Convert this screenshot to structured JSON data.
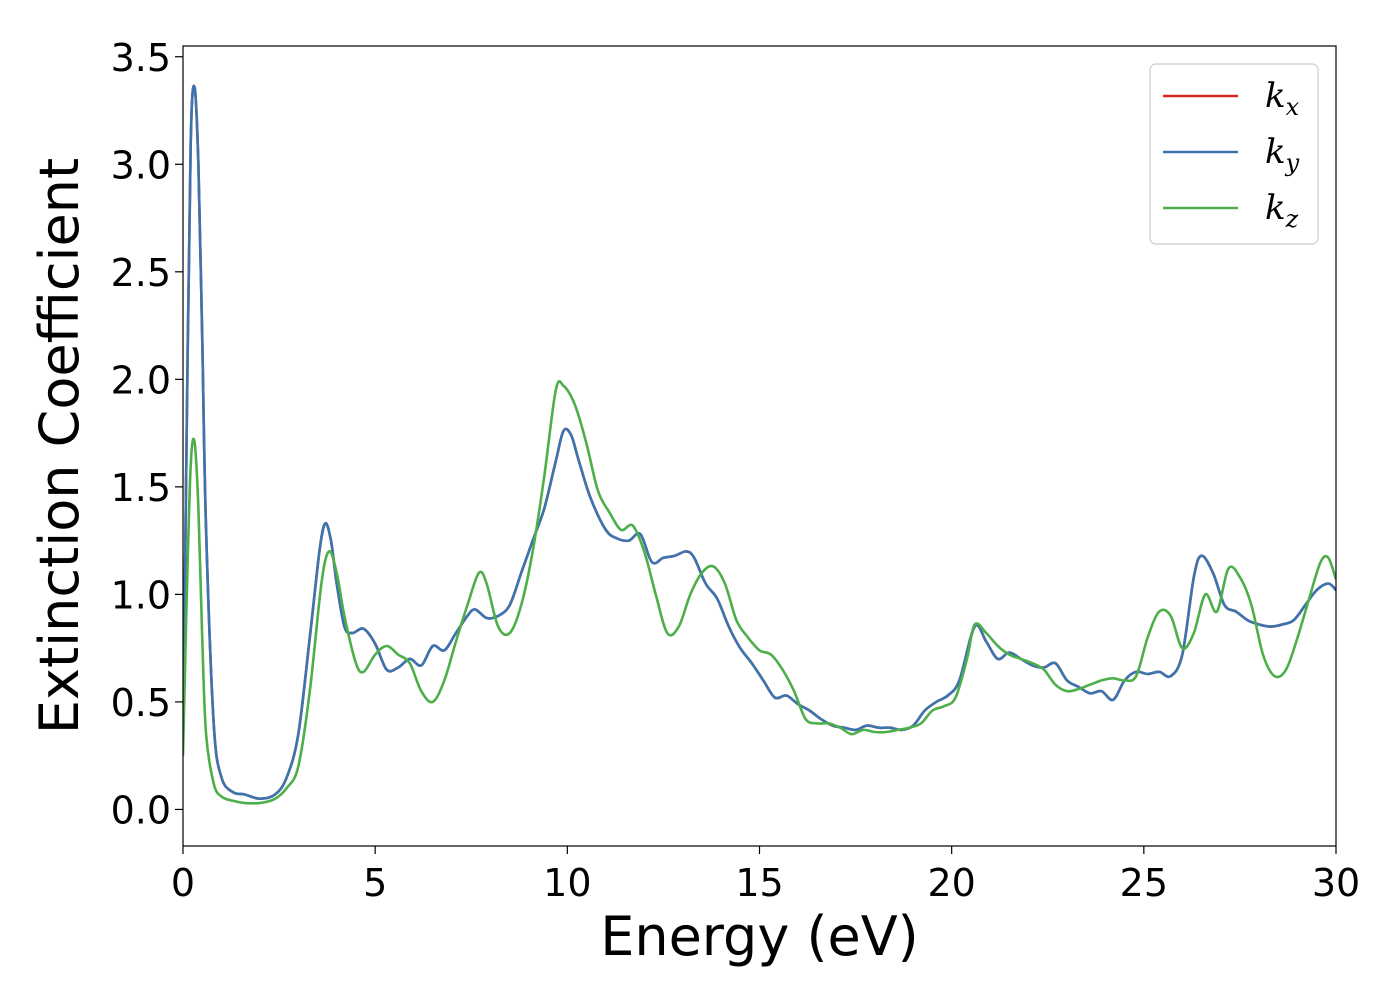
{
  "chart_data": {
    "type": "line",
    "xlabel": "Energy (eV)",
    "ylabel": "Extinction Coefficient",
    "xlim": [
      0,
      30
    ],
    "ylim": [
      -0.17,
      3.55
    ],
    "xticks": [
      0,
      5,
      10,
      15,
      20,
      25,
      30
    ],
    "yticks": [
      0.0,
      0.5,
      1.0,
      1.5,
      2.0,
      2.5,
      3.0,
      3.5
    ],
    "xtick_labels": [
      "0",
      "5",
      "10",
      "15",
      "20",
      "25",
      "30"
    ],
    "ytick_labels": [
      "0.0",
      "0.5",
      "1.0",
      "1.5",
      "2.0",
      "2.5",
      "3.0",
      "3.5"
    ],
    "grid": false,
    "legend_position": "top-right",
    "series": [
      {
        "name": "k",
        "subscript": "x",
        "color": "#d62728",
        "x": [
          0.0,
          0.1,
          0.2,
          0.3,
          0.4,
          0.5,
          0.6,
          0.8,
          1.0,
          1.3,
          1.6,
          2.0,
          2.4,
          2.7,
          3.0,
          3.3,
          3.55,
          3.7,
          3.85,
          4.0,
          4.2,
          4.4,
          4.7,
          5.0,
          5.3,
          5.6,
          5.9,
          6.2,
          6.5,
          6.8,
          7.1,
          7.4,
          7.6,
          7.9,
          8.2,
          8.5,
          8.8,
          9.1,
          9.4,
          9.7,
          9.9,
          10.1,
          10.3,
          10.6,
          11.0,
          11.3,
          11.6,
          11.9,
          12.2,
          12.5,
          12.8,
          13.1,
          13.3,
          13.6,
          13.9,
          14.2,
          14.5,
          14.8,
          15.1,
          15.4,
          15.7,
          16.0,
          16.3,
          16.6,
          16.9,
          17.2,
          17.5,
          17.8,
          18.1,
          18.4,
          18.7,
          19.0,
          19.3,
          19.6,
          19.9,
          20.2,
          20.6,
          20.9,
          21.2,
          21.5,
          21.8,
          22.1,
          22.4,
          22.7,
          23.0,
          23.3,
          23.6,
          23.9,
          24.2,
          24.5,
          24.8,
          25.1,
          25.4,
          25.7,
          26.0,
          26.3,
          26.5,
          26.8,
          27.1,
          27.4,
          27.7,
          28.0,
          28.3,
          28.6,
          28.9,
          29.2,
          29.5,
          29.8,
          30.0
        ],
        "y": [
          0.3,
          1.8,
          3.1,
          3.36,
          3.0,
          2.2,
          1.3,
          0.4,
          0.15,
          0.08,
          0.07,
          0.05,
          0.07,
          0.15,
          0.35,
          0.8,
          1.2,
          1.33,
          1.25,
          1.05,
          0.85,
          0.82,
          0.84,
          0.77,
          0.65,
          0.66,
          0.7,
          0.67,
          0.76,
          0.74,
          0.82,
          0.9,
          0.93,
          0.89,
          0.9,
          0.95,
          1.1,
          1.25,
          1.4,
          1.62,
          1.76,
          1.74,
          1.62,
          1.45,
          1.3,
          1.26,
          1.25,
          1.28,
          1.15,
          1.17,
          1.18,
          1.2,
          1.17,
          1.05,
          0.98,
          0.85,
          0.75,
          0.68,
          0.6,
          0.52,
          0.53,
          0.49,
          0.46,
          0.42,
          0.39,
          0.38,
          0.37,
          0.39,
          0.38,
          0.38,
          0.37,
          0.39,
          0.46,
          0.5,
          0.53,
          0.6,
          0.85,
          0.78,
          0.7,
          0.73,
          0.7,
          0.67,
          0.66,
          0.68,
          0.6,
          0.57,
          0.54,
          0.55,
          0.51,
          0.6,
          0.64,
          0.63,
          0.64,
          0.62,
          0.72,
          1.08,
          1.18,
          1.1,
          0.95,
          0.92,
          0.88,
          0.86,
          0.85,
          0.86,
          0.88,
          0.95,
          1.02,
          1.05,
          1.02
        ]
      },
      {
        "name": "k",
        "subscript": "y",
        "color": "#3a75b0",
        "x": [
          0.0,
          0.1,
          0.2,
          0.3,
          0.4,
          0.5,
          0.6,
          0.8,
          1.0,
          1.3,
          1.6,
          2.0,
          2.4,
          2.7,
          3.0,
          3.3,
          3.55,
          3.7,
          3.85,
          4.0,
          4.2,
          4.4,
          4.7,
          5.0,
          5.3,
          5.6,
          5.9,
          6.2,
          6.5,
          6.8,
          7.1,
          7.4,
          7.6,
          7.9,
          8.2,
          8.5,
          8.8,
          9.1,
          9.4,
          9.7,
          9.9,
          10.1,
          10.3,
          10.6,
          11.0,
          11.3,
          11.6,
          11.9,
          12.2,
          12.5,
          12.8,
          13.1,
          13.3,
          13.6,
          13.9,
          14.2,
          14.5,
          14.8,
          15.1,
          15.4,
          15.7,
          16.0,
          16.3,
          16.6,
          16.9,
          17.2,
          17.5,
          17.8,
          18.1,
          18.4,
          18.7,
          19.0,
          19.3,
          19.6,
          19.9,
          20.2,
          20.6,
          20.9,
          21.2,
          21.5,
          21.8,
          22.1,
          22.4,
          22.7,
          23.0,
          23.3,
          23.6,
          23.9,
          24.2,
          24.5,
          24.8,
          25.1,
          25.4,
          25.7,
          26.0,
          26.3,
          26.5,
          26.8,
          27.1,
          27.4,
          27.7,
          28.0,
          28.3,
          28.6,
          28.9,
          29.2,
          29.5,
          29.8,
          30.0
        ],
        "y": [
          0.3,
          1.8,
          3.1,
          3.36,
          3.0,
          2.2,
          1.3,
          0.4,
          0.15,
          0.08,
          0.07,
          0.05,
          0.07,
          0.15,
          0.35,
          0.8,
          1.2,
          1.33,
          1.25,
          1.05,
          0.85,
          0.82,
          0.84,
          0.77,
          0.65,
          0.66,
          0.7,
          0.67,
          0.76,
          0.74,
          0.82,
          0.9,
          0.93,
          0.89,
          0.9,
          0.95,
          1.1,
          1.25,
          1.4,
          1.62,
          1.76,
          1.74,
          1.62,
          1.45,
          1.3,
          1.26,
          1.25,
          1.28,
          1.15,
          1.17,
          1.18,
          1.2,
          1.17,
          1.05,
          0.98,
          0.85,
          0.75,
          0.68,
          0.6,
          0.52,
          0.53,
          0.49,
          0.46,
          0.42,
          0.39,
          0.38,
          0.37,
          0.39,
          0.38,
          0.38,
          0.37,
          0.39,
          0.46,
          0.5,
          0.53,
          0.6,
          0.85,
          0.78,
          0.7,
          0.73,
          0.7,
          0.67,
          0.66,
          0.68,
          0.6,
          0.57,
          0.54,
          0.55,
          0.51,
          0.6,
          0.64,
          0.63,
          0.64,
          0.62,
          0.72,
          1.08,
          1.18,
          1.1,
          0.95,
          0.92,
          0.88,
          0.86,
          0.85,
          0.86,
          0.88,
          0.95,
          1.02,
          1.05,
          1.02
        ]
      },
      {
        "name": "k",
        "subscript": "z",
        "color": "#4daf4a",
        "x": [
          0.0,
          0.1,
          0.2,
          0.3,
          0.4,
          0.5,
          0.6,
          0.8,
          1.0,
          1.3,
          1.6,
          2.0,
          2.4,
          2.7,
          3.0,
          3.3,
          3.6,
          3.8,
          4.0,
          4.2,
          4.5,
          4.7,
          5.0,
          5.3,
          5.6,
          5.9,
          6.2,
          6.5,
          6.8,
          7.1,
          7.4,
          7.7,
          7.9,
          8.2,
          8.5,
          8.8,
          9.1,
          9.4,
          9.7,
          9.9,
          10.2,
          10.5,
          10.8,
          11.1,
          11.4,
          11.7,
          12.0,
          12.3,
          12.6,
          12.9,
          13.2,
          13.5,
          13.8,
          14.1,
          14.4,
          14.7,
          15.0,
          15.3,
          15.6,
          15.9,
          16.2,
          16.5,
          16.8,
          17.1,
          17.4,
          17.7,
          18.0,
          18.3,
          18.6,
          18.9,
          19.2,
          19.5,
          19.8,
          20.1,
          20.4,
          20.6,
          20.9,
          21.2,
          21.5,
          21.8,
          22.1,
          22.4,
          22.7,
          23.0,
          23.3,
          23.6,
          23.9,
          24.2,
          24.5,
          24.8,
          25.1,
          25.4,
          25.7,
          26.0,
          26.3,
          26.6,
          26.9,
          27.2,
          27.5,
          27.8,
          28.1,
          28.4,
          28.7,
          29.0,
          29.3,
          29.6,
          29.8,
          30.0
        ],
        "y": [
          0.25,
          1.0,
          1.6,
          1.71,
          1.4,
          0.8,
          0.35,
          0.12,
          0.06,
          0.04,
          0.03,
          0.03,
          0.05,
          0.1,
          0.2,
          0.55,
          1.05,
          1.2,
          1.1,
          0.9,
          0.68,
          0.64,
          0.72,
          0.76,
          0.72,
          0.68,
          0.55,
          0.5,
          0.6,
          0.78,
          0.95,
          1.1,
          1.05,
          0.85,
          0.82,
          0.95,
          1.2,
          1.55,
          1.95,
          1.97,
          1.88,
          1.7,
          1.48,
          1.38,
          1.3,
          1.32,
          1.2,
          1.0,
          0.82,
          0.85,
          1.0,
          1.1,
          1.13,
          1.05,
          0.88,
          0.8,
          0.74,
          0.72,
          0.65,
          0.55,
          0.42,
          0.4,
          0.4,
          0.38,
          0.35,
          0.37,
          0.36,
          0.36,
          0.37,
          0.38,
          0.4,
          0.46,
          0.48,
          0.52,
          0.7,
          0.86,
          0.82,
          0.76,
          0.72,
          0.7,
          0.68,
          0.65,
          0.58,
          0.55,
          0.56,
          0.58,
          0.6,
          0.61,
          0.6,
          0.62,
          0.8,
          0.92,
          0.9,
          0.75,
          0.82,
          1.0,
          0.92,
          1.12,
          1.08,
          0.95,
          0.72,
          0.62,
          0.65,
          0.8,
          0.98,
          1.15,
          1.17,
          1.07
        ]
      }
    ]
  }
}
